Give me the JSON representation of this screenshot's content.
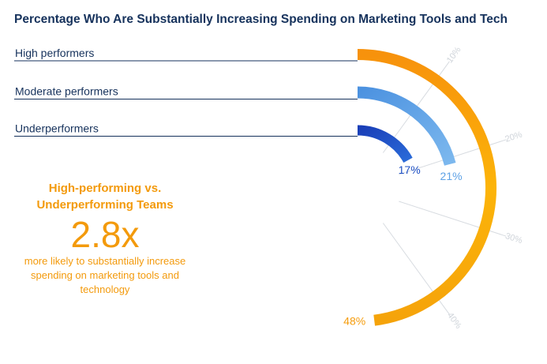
{
  "title": "Percentage Who Are Substantially Increasing Spending on Marketing Tools and Tech",
  "sidebar": {
    "heading": "High-performing vs. Underperforming Teams",
    "multiplier": "2.8x",
    "description": "more likely to substantially increase spending on marketing tools and technology"
  },
  "chart_data": {
    "type": "radial-bar",
    "max_percent": 50,
    "series": [
      {
        "name": "High performers",
        "value": 48,
        "label": "48%",
        "color": "#f59c0c"
      },
      {
        "name": "Moderate performers",
        "value": 21,
        "label": "21%",
        "color": "#5ea2e6"
      },
      {
        "name": "Underperformers",
        "value": 17,
        "label": "17%",
        "color": "#1d4fc4"
      }
    ],
    "ticks": [
      {
        "value": 10,
        "label": "10%"
      },
      {
        "value": 20,
        "label": "20%"
      },
      {
        "value": 30,
        "label": "30%"
      },
      {
        "value": 40,
        "label": "40%"
      }
    ],
    "legend": "left"
  }
}
